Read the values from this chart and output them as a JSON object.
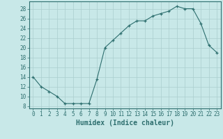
{
  "title": "",
  "xlabel": "Humidex (Indice chaleur)",
  "ylabel": "",
  "x": [
    0,
    1,
    2,
    3,
    4,
    5,
    6,
    7,
    8,
    9,
    10,
    11,
    12,
    13,
    14,
    15,
    16,
    17,
    18,
    19,
    20,
    21,
    22,
    23
  ],
  "y": [
    14,
    12,
    11,
    10,
    8.5,
    8.5,
    8.5,
    8.5,
    13.5,
    20,
    21.5,
    23,
    24.5,
    25.5,
    25.5,
    26.5,
    27,
    27.5,
    28.5,
    28,
    28,
    25,
    20.5,
    19
  ],
  "line_color": "#2d6e6e",
  "marker": "+",
  "bg_color": "#c8e8e8",
  "grid_color": "#aacece",
  "xlim": [
    -0.5,
    23.5
  ],
  "ylim": [
    7.5,
    29.5
  ],
  "yticks": [
    8,
    10,
    12,
    14,
    16,
    18,
    20,
    22,
    24,
    26,
    28
  ],
  "xticks": [
    0,
    1,
    2,
    3,
    4,
    5,
    6,
    7,
    8,
    9,
    10,
    11,
    12,
    13,
    14,
    15,
    16,
    17,
    18,
    19,
    20,
    21,
    22,
    23
  ],
  "tick_label_size": 5.5,
  "xlabel_size": 7,
  "axis_color": "#2d6e6e",
  "spine_color": "#2d6e6e"
}
